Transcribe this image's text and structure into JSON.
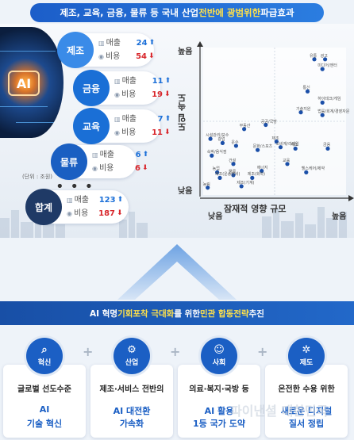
{
  "banner": {
    "prefix": "제조, 교육, 금융, 물류 등 국내 산업 ",
    "highlight": "전반에 광범위한",
    "suffix": " 파급효과"
  },
  "ai_chip_label": "AI",
  "categories": [
    {
      "name": "제조",
      "color": "#3a8be8",
      "sales_label": "매출",
      "sales": "24",
      "cost_label": "비용",
      "cost": "54"
    },
    {
      "name": "금융",
      "color": "#1a6fd6",
      "sales_label": "매출",
      "sales": "11",
      "cost_label": "비용",
      "cost": "19"
    },
    {
      "name": "교육",
      "color": "#1a6fd6",
      "sales_label": "매출",
      "sales": "7",
      "cost_label": "비용",
      "cost": "11"
    },
    {
      "name": "물류",
      "color": "#1a5fc2",
      "sales_label": "매출",
      "sales": "6",
      "cost_label": "비용",
      "cost": "6"
    },
    {
      "name": "합계",
      "color": "#1f3a66",
      "sales_label": "매출",
      "sales": "123",
      "cost_label": "비용",
      "cost": "187"
    }
  ],
  "unit_label": "(단위 : 조원)",
  "dots_label": "• • •",
  "chart_data": {
    "type": "scatter",
    "ylabel": "도입 속도",
    "xlabel": "잠재적 영향 규모",
    "y_ticks": [
      "높음",
      "낮음"
    ],
    "x_ticks": [
      "낮음",
      "높음"
    ],
    "points": [
      {
        "label": "유통",
        "x": 0.8,
        "y": 0.95
      },
      {
        "label": "광고",
        "x": 0.88,
        "y": 0.95
      },
      {
        "label": "미디어/엔터",
        "x": 0.86,
        "y": 0.88
      },
      {
        "label": "통신",
        "x": 0.75,
        "y": 0.72
      },
      {
        "label": "하이테크/게임",
        "x": 0.86,
        "y": 0.64
      },
      {
        "label": "기술지원",
        "x": 0.7,
        "y": 0.57
      },
      {
        "label": "법률/회계/경영자문",
        "x": 0.86,
        "y": 0.55
      },
      {
        "label": "공공/국방",
        "x": 0.44,
        "y": 0.48
      },
      {
        "label": "부동산",
        "x": 0.28,
        "y": 0.45
      },
      {
        "label": "시설관리/보수",
        "x": 0.03,
        "y": 0.38
      },
      {
        "label": "광업",
        "x": 0.12,
        "y": 0.35
      },
      {
        "label": "운수",
        "x": 0.22,
        "y": 0.33
      },
      {
        "label": "제조",
        "x": 0.52,
        "y": 0.36
      },
      {
        "label": "소비재/리테일",
        "x": 0.55,
        "y": 0.32
      },
      {
        "label": "제조",
        "x": 0.66,
        "y": 0.31
      },
      {
        "label": "금융",
        "x": 0.9,
        "y": 0.31
      },
      {
        "label": "문화/스포츠",
        "x": 0.38,
        "y": 0.3
      },
      {
        "label": "숙박/음식점",
        "x": 0.04,
        "y": 0.26
      },
      {
        "label": "건설",
        "x": 0.2,
        "y": 0.2
      },
      {
        "label": "농업",
        "x": 0.08,
        "y": 0.14
      },
      {
        "label": "제조(운송장비)",
        "x": 0.1,
        "y": 0.1
      },
      {
        "label": "물류",
        "x": 0.2,
        "y": 0.12
      },
      {
        "label": "에너지",
        "x": 0.41,
        "y": 0.15
      },
      {
        "label": "교육",
        "x": 0.6,
        "y": 0.2
      },
      {
        "label": "제조(화학)",
        "x": 0.34,
        "y": 0.1
      },
      {
        "label": "헬스케어/제약",
        "x": 0.74,
        "y": 0.14
      },
      {
        "label": "농림",
        "x": 0.01,
        "y": 0.03
      },
      {
        "label": "제조(기계)",
        "x": 0.26,
        "y": 0.04
      }
    ]
  },
  "mid_banner": {
    "p1": "AI 혁명 ",
    "h1": "기회포착 극대화",
    "p2": "를 위한 ",
    "h2": "민관 합동전략",
    "p3": " 추진"
  },
  "cards": [
    {
      "badge": "혁신",
      "icon": "⌕",
      "line1": "글로벌 선도수준",
      "line2": "AI",
      "line3": "기술 혁신"
    },
    {
      "badge": "산업",
      "icon": "⚙",
      "line1": "제조·서비스 전반의",
      "line2": "AI 대전환",
      "line3": "가속화"
    },
    {
      "badge": "사회",
      "icon": "☺",
      "line1": "의료·복지·국방 등",
      "line2": "AI 활용",
      "line3": "1등 국가 도약"
    },
    {
      "badge": "제도",
      "icon": "✲",
      "line1": "온전한 수용 위한",
      "line2": "새로운 디지털",
      "line3": "질서 정립"
    }
  ],
  "watermark": "파이낸셜 대한민국"
}
